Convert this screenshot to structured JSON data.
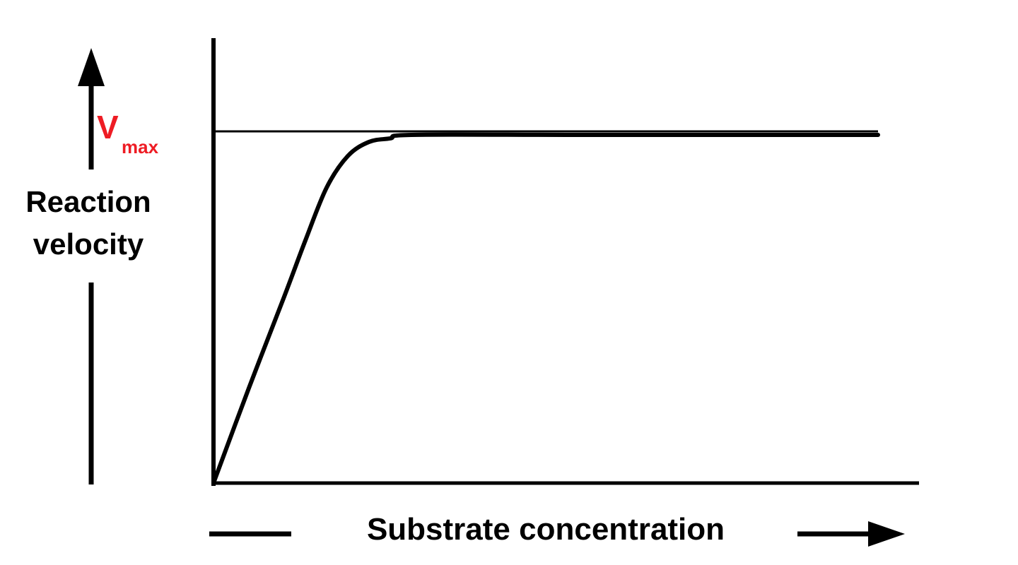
{
  "chart_data": {
    "type": "line",
    "title": "",
    "xlabel": "Substrate concentration",
    "ylabel": [
      "Reaction",
      "velocity"
    ],
    "vmax_label": {
      "main": "V",
      "sub": "max"
    },
    "x_ticks": [],
    "y_ticks": [],
    "xlim": [
      0,
      1
    ],
    "ylim": [
      0,
      1
    ],
    "grid": false,
    "legend": "none",
    "vmax_value": 1.0,
    "series": [
      {
        "values": [
          [
            0.0,
            0.0
          ],
          [
            0.05,
            0.27
          ],
          [
            0.1,
            0.53
          ],
          [
            0.13,
            0.69
          ],
          [
            0.16,
            0.84
          ],
          [
            0.19,
            0.93
          ],
          [
            0.22,
            0.97
          ],
          [
            0.25,
            0.98
          ],
          [
            0.28,
            0.99
          ],
          [
            0.5,
            0.99
          ],
          [
            0.75,
            0.99
          ],
          [
            0.94,
            0.99
          ]
        ]
      }
    ],
    "colors": {
      "line": "#000000",
      "axis": "#000000",
      "vmax": "#ee1c24"
    }
  }
}
